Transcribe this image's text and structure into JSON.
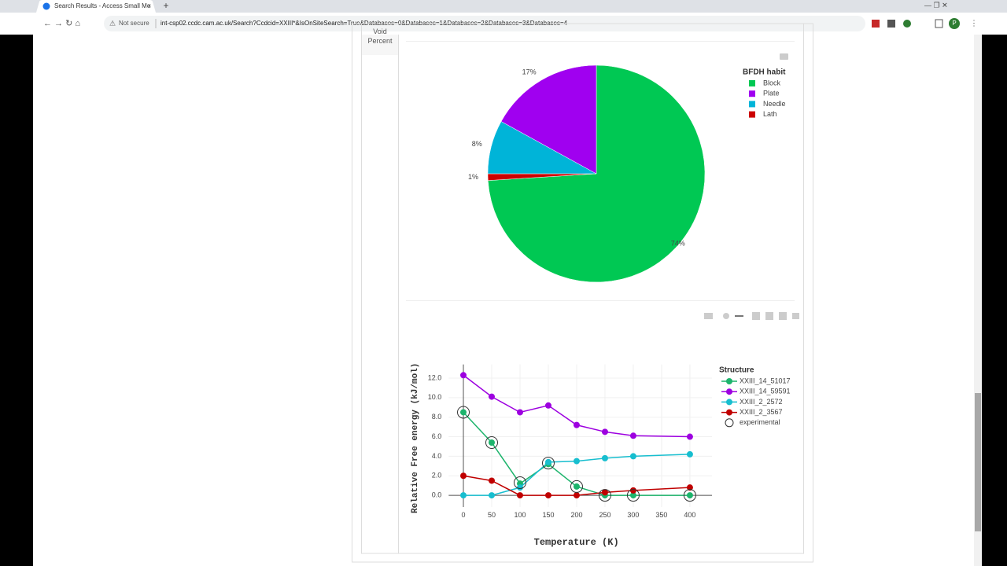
{
  "browser": {
    "tab_title": "Search Results - Access Small Mo",
    "security": "Not secure",
    "url": "int-csp02.ccdc.cam.ac.uk/Search?Ccdcid=XXIII*&IsOnSiteSearch=True&Databases=0&Databases=1&Databases=2&Databases=3&Databases=4",
    "profile": "P"
  },
  "sidebar": {
    "label": "Void Percent"
  },
  "chart_data": [
    {
      "type": "pie",
      "legend_title": "BFDH habit",
      "categories": [
        "Block",
        "Plate",
        "Needle",
        "Lath"
      ],
      "values": [
        74,
        17,
        8,
        1
      ],
      "value_labels": [
        "74%",
        "17%",
        "8%",
        "1%"
      ],
      "colors": [
        "#00c853",
        "#a000f0",
        "#00b4d8",
        "#cc0000"
      ],
      "legend": "top-right"
    },
    {
      "type": "line",
      "x_label": "Temperature (K)",
      "y_label": "Relative Free energy (kJ/mol)",
      "legend_title": "Structure",
      "legend": "top-right",
      "grid": true,
      "x": [
        0,
        50,
        100,
        150,
        200,
        250,
        300,
        400
      ],
      "xlim": [
        -26,
        439
      ],
      "xticks": [
        0,
        50,
        100,
        150,
        200,
        250,
        300,
        350,
        400
      ],
      "ylim": [
        -1.2,
        13.4
      ],
      "yticks": [
        {
          "value": 0,
          "label": "0.0"
        },
        {
          "value": 2,
          "label": "2.0"
        },
        {
          "value": 4,
          "label": "4.0"
        },
        {
          "value": 6,
          "label": "6.0"
        },
        {
          "value": 8,
          "label": "8.0"
        },
        {
          "value": 10,
          "label": "10.0"
        },
        {
          "value": 12,
          "label": "12.0"
        }
      ],
      "series": [
        {
          "name": "XXIII_14_51017",
          "color": "#1db46c",
          "values": [
            8.5,
            5.4,
            1.2,
            3.2,
            0.9,
            0,
            0,
            0
          ]
        },
        {
          "name": "XXIII_14_59591",
          "color": "#9d00e0",
          "values": [
            12.3,
            10.1,
            8.5,
            9.2,
            7.2,
            6.5,
            6.1,
            6.0
          ]
        },
        {
          "name": "XXIII_2_2572",
          "color": "#17becf",
          "values": [
            0,
            0,
            0.8,
            3.4,
            3.5,
            3.8,
            4.0,
            4.2
          ]
        },
        {
          "name": "XXIII_2_3567",
          "color": "#c00000",
          "values": [
            2.0,
            1.5,
            0,
            0,
            0,
            0.3,
            0.5,
            0.8
          ]
        },
        {
          "name": "experimental",
          "color": "#333333",
          "mode": "markers",
          "values": [
            8.5,
            5.4,
            1.3,
            3.3,
            0.9,
            0,
            0,
            0
          ]
        }
      ]
    }
  ]
}
